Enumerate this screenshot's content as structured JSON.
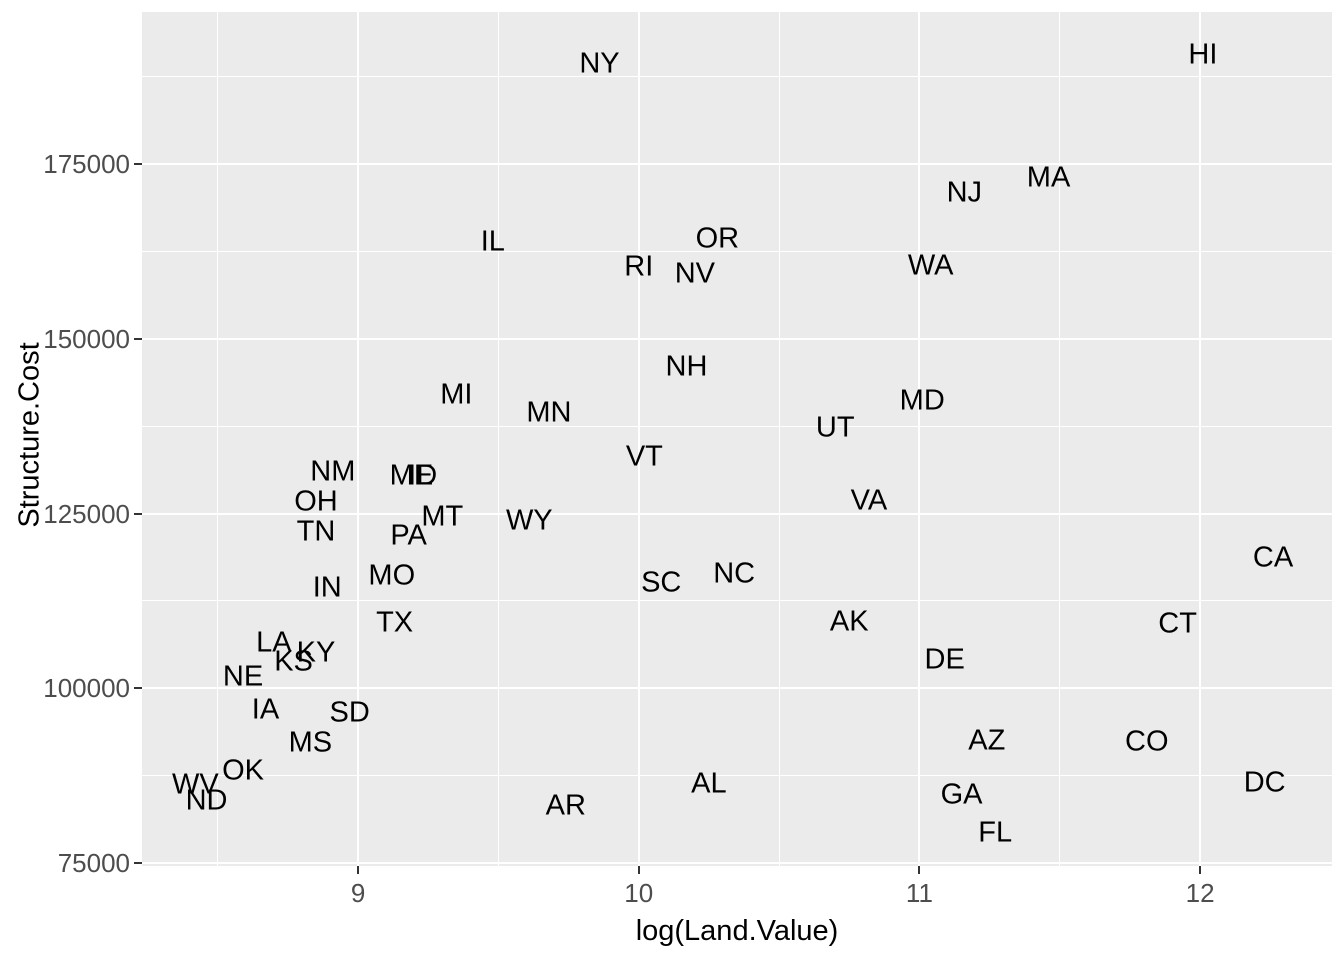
{
  "style": {
    "background": "#FFFFFF",
    "panel_background": "#EBEBEB",
    "grid_color": "#FFFFFF",
    "tick_mark_color": "#333333",
    "tick_label_color": "#4D4D4D",
    "axis_title_color": "#000000",
    "point_label_color": "#000000"
  },
  "chart_data": {
    "type": "scatter",
    "title": "",
    "xlabel": "log(Land.Value)",
    "ylabel": "Structure.Cost",
    "xlim": [
      8.23,
      12.47
    ],
    "ylim": [
      74572,
      196745
    ],
    "x_major_ticks": [
      9,
      10,
      11,
      12
    ],
    "x_minor_ticks": [
      8.5,
      9.5,
      10.5,
      11.5,
      12.5
    ],
    "y_major_ticks": [
      75000,
      100000,
      125000,
      150000,
      175000
    ],
    "y_minor_ticks": [
      87500,
      112500,
      137500,
      162500,
      187500
    ],
    "grid": "ggplot2-style: white major and minor gridlines on grey panel",
    "legend_position": "none",
    "marker": "text label (state abbreviation) at data point",
    "points": [
      {
        "label": "NY",
        "x": 9.86,
        "y": 189300
      },
      {
        "label": "HI",
        "x": 12.01,
        "y": 190600
      },
      {
        "label": "MA",
        "x": 11.46,
        "y": 173000
      },
      {
        "label": "NJ",
        "x": 11.16,
        "y": 170800
      },
      {
        "label": "IL",
        "x": 9.48,
        "y": 163900
      },
      {
        "label": "OR",
        "x": 10.28,
        "y": 164300
      },
      {
        "label": "RI",
        "x": 10.0,
        "y": 160300
      },
      {
        "label": "NV",
        "x": 10.2,
        "y": 159300
      },
      {
        "label": "WA",
        "x": 11.04,
        "y": 160400
      },
      {
        "label": "NH",
        "x": 10.17,
        "y": 146000
      },
      {
        "label": "MI",
        "x": 9.35,
        "y": 142000
      },
      {
        "label": "MD",
        "x": 11.01,
        "y": 141100
      },
      {
        "label": "MN",
        "x": 9.68,
        "y": 139400
      },
      {
        "label": "UT",
        "x": 10.7,
        "y": 137300
      },
      {
        "label": "VT",
        "x": 10.02,
        "y": 133100
      },
      {
        "label": "NM",
        "x": 8.91,
        "y": 131000
      },
      {
        "label": "ME",
        "x": 9.19,
        "y": 130400
      },
      {
        "label": "ID",
        "x": 9.23,
        "y": 130400
      },
      {
        "label": "OH",
        "x": 8.85,
        "y": 126700
      },
      {
        "label": "VA",
        "x": 10.82,
        "y": 126800
      },
      {
        "label": "TN",
        "x": 8.85,
        "y": 122400
      },
      {
        "label": "PA",
        "x": 9.18,
        "y": 121800
      },
      {
        "label": "MT",
        "x": 9.3,
        "y": 124500
      },
      {
        "label": "WY",
        "x": 9.61,
        "y": 123900
      },
      {
        "label": "MO",
        "x": 9.12,
        "y": 116100
      },
      {
        "label": "IN",
        "x": 8.89,
        "y": 114300
      },
      {
        "label": "SC",
        "x": 10.08,
        "y": 115000
      },
      {
        "label": "NC",
        "x": 10.34,
        "y": 116400
      },
      {
        "label": "TX",
        "x": 9.13,
        "y": 109300
      },
      {
        "label": "AK",
        "x": 10.75,
        "y": 109500
      },
      {
        "label": "CT",
        "x": 11.92,
        "y": 109200
      },
      {
        "label": "CA",
        "x": 12.26,
        "y": 118600
      },
      {
        "label": "LA",
        "x": 8.7,
        "y": 106500
      },
      {
        "label": "KY",
        "x": 8.85,
        "y": 105100
      },
      {
        "label": "KS",
        "x": 8.77,
        "y": 103800
      },
      {
        "label": "NE",
        "x": 8.59,
        "y": 101600
      },
      {
        "label": "DE",
        "x": 11.09,
        "y": 104100
      },
      {
        "label": "IA",
        "x": 8.67,
        "y": 96900
      },
      {
        "label": "SD",
        "x": 8.97,
        "y": 96400
      },
      {
        "label": "MS",
        "x": 8.83,
        "y": 92200
      },
      {
        "label": "AZ",
        "x": 11.24,
        "y": 92500
      },
      {
        "label": "CO",
        "x": 11.81,
        "y": 92300
      },
      {
        "label": "OK",
        "x": 8.59,
        "y": 88200
      },
      {
        "label": "WV",
        "x": 8.42,
        "y": 86200
      },
      {
        "label": "ND",
        "x": 8.46,
        "y": 83800
      },
      {
        "label": "AL",
        "x": 10.25,
        "y": 86300
      },
      {
        "label": "AR",
        "x": 9.74,
        "y": 83200
      },
      {
        "label": "GA",
        "x": 11.15,
        "y": 84700
      },
      {
        "label": "DC",
        "x": 12.23,
        "y": 86500
      },
      {
        "label": "FL",
        "x": 11.27,
        "y": 79300
      }
    ]
  }
}
